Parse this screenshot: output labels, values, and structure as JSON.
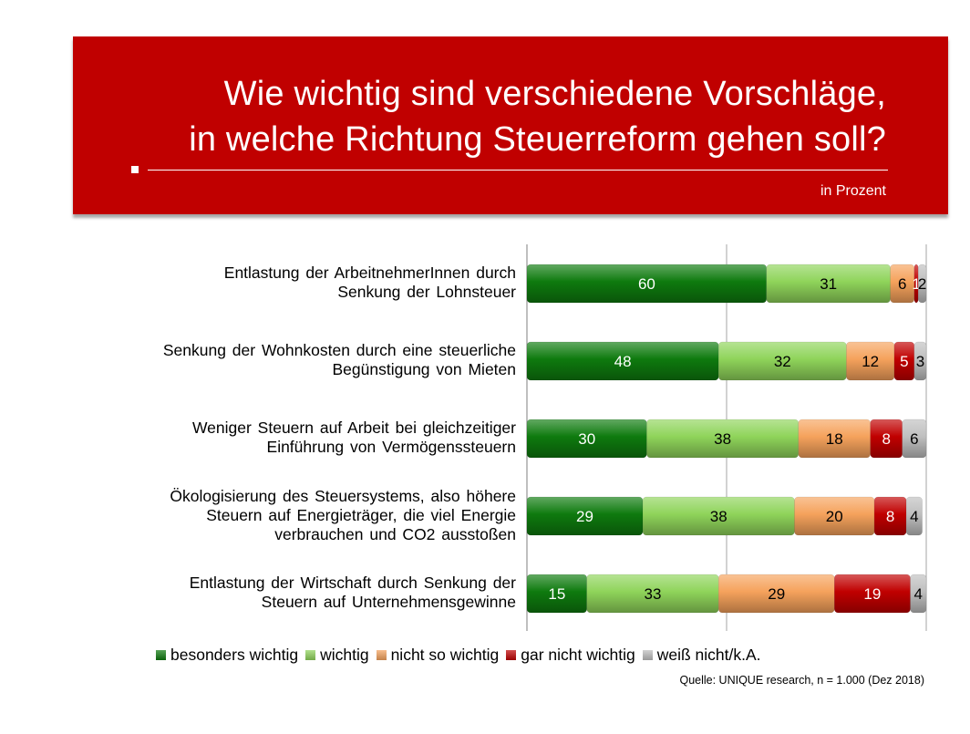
{
  "header": {
    "title_line1": "Wie wichtig sind verschiedene Vorschläge,",
    "title_line2": "in welche Richtung Steuerreform gehen soll?",
    "unit": "in Prozent"
  },
  "source": "Quelle: UNIQUE  research, n = 1.000  (Dez 2018)",
  "chart_data": {
    "type": "bar",
    "orientation": "horizontal",
    "stacked": true,
    "xlim": [
      0,
      100
    ],
    "grid": true,
    "legend_position": "bottom",
    "categories": [
      "Entlastung der ArbeitnehmerInnen durch\nSenkung der Lohnsteuer",
      "Senkung der Wohnkosten durch eine steuerliche\nBegünstigung von Mieten",
      "Weniger Steuern auf Arbeit bei gleichzeitiger\nEinführung von Vermögenssteuern",
      "Ökologisierung des Steuersystems, also höhere\nSteuern auf Energieträger, die viel Energie\nverbrauchen und CO2 ausstoßen",
      "Entlastung der Wirtschaft durch Senkung der\nSteuern auf Unternehmensgewinne"
    ],
    "series": [
      {
        "name": "besonders wichtig",
        "color": "#0e7a0e",
        "values": [
          60,
          48,
          30,
          29,
          15
        ]
      },
      {
        "name": "wichtig",
        "color": "#8fd45a",
        "values": [
          31,
          32,
          38,
          38,
          33
        ]
      },
      {
        "name": "nicht so wichtig",
        "color": "#f5a25c",
        "values": [
          6,
          12,
          18,
          20,
          29
        ]
      },
      {
        "name": "gar nicht wichtig",
        "color": "#c00000",
        "values": [
          1,
          5,
          8,
          8,
          19
        ]
      },
      {
        "name": "weiß nicht/k.A.",
        "color": "#bfbfbf",
        "values": [
          2,
          3,
          6,
          4,
          4
        ]
      }
    ]
  }
}
